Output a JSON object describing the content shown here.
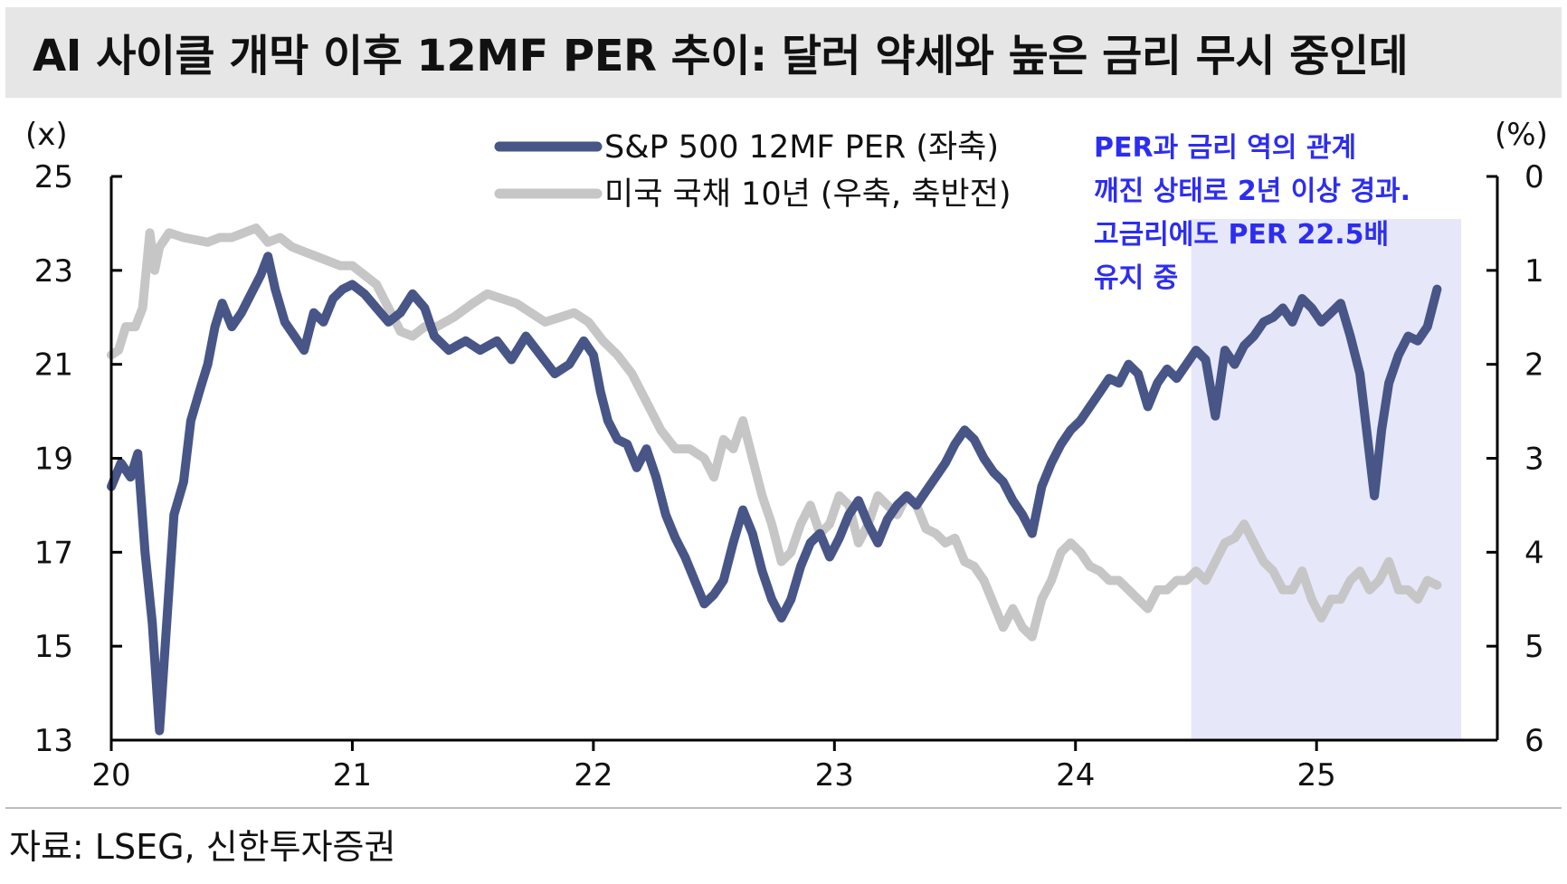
{
  "title": "AI 사이클 개막 이후 12MF PER 추이: 달러 약세와 높은 금리 무시 중인데",
  "source": "자료: LSEG, 신한투자증권",
  "annotation": [
    "PER과 금리 역의 관계",
    "깨진 상태로 2년 이상 경과.",
    "고금리에도 PER 22.5배",
    "유지 중"
  ],
  "colors": {
    "per": "#475587",
    "yield": "#c6c6c6",
    "highlight": "#e6e8f9",
    "annotation": "#2d2df0"
  },
  "chart_data": {
    "type": "line",
    "left_axis": {
      "unit": "(x)",
      "min": 13,
      "max": 25,
      "ticks": [
        25,
        23,
        21,
        19,
        17,
        15,
        13
      ]
    },
    "right_axis": {
      "unit": "(%)",
      "min": 0,
      "max": 6,
      "inverted": true,
      "ticks": [
        0,
        1,
        2,
        3,
        4,
        5,
        6
      ]
    },
    "x_axis": {
      "min": 2020,
      "max": 2025.75,
      "ticks": [
        2020,
        2021,
        2022,
        2023,
        2024,
        2025
      ],
      "labels": [
        "20",
        "21",
        "22",
        "23",
        "24",
        "25"
      ]
    },
    "highlight_x": [
      2024.48,
      2025.6
    ],
    "legend": "top-center",
    "series": [
      {
        "name": "S&P 500 12MF PER (좌축)",
        "axis": "left",
        "points": [
          [
            2020.0,
            18.4
          ],
          [
            2020.04,
            18.9
          ],
          [
            2020.08,
            18.6
          ],
          [
            2020.11,
            19.1
          ],
          [
            2020.14,
            17.0
          ],
          [
            2020.17,
            15.5
          ],
          [
            2020.2,
            13.2
          ],
          [
            2020.23,
            15.5
          ],
          [
            2020.26,
            17.8
          ],
          [
            2020.3,
            18.5
          ],
          [
            2020.33,
            19.8
          ],
          [
            2020.37,
            20.5
          ],
          [
            2020.4,
            21.0
          ],
          [
            2020.43,
            21.8
          ],
          [
            2020.46,
            22.3
          ],
          [
            2020.5,
            21.8
          ],
          [
            2020.54,
            22.1
          ],
          [
            2020.58,
            22.5
          ],
          [
            2020.62,
            22.9
          ],
          [
            2020.65,
            23.3
          ],
          [
            2020.68,
            22.6
          ],
          [
            2020.72,
            21.9
          ],
          [
            2020.76,
            21.6
          ],
          [
            2020.8,
            21.3
          ],
          [
            2020.84,
            22.1
          ],
          [
            2020.88,
            21.9
          ],
          [
            2020.92,
            22.4
          ],
          [
            2020.96,
            22.6
          ],
          [
            2021.0,
            22.7
          ],
          [
            2021.05,
            22.5
          ],
          [
            2021.1,
            22.2
          ],
          [
            2021.15,
            21.9
          ],
          [
            2021.2,
            22.1
          ],
          [
            2021.25,
            22.5
          ],
          [
            2021.3,
            22.2
          ],
          [
            2021.34,
            21.6
          ],
          [
            2021.4,
            21.3
          ],
          [
            2021.47,
            21.5
          ],
          [
            2021.53,
            21.3
          ],
          [
            2021.6,
            21.5
          ],
          [
            2021.66,
            21.1
          ],
          [
            2021.72,
            21.6
          ],
          [
            2021.78,
            21.2
          ],
          [
            2021.84,
            20.8
          ],
          [
            2021.9,
            21.0
          ],
          [
            2021.96,
            21.5
          ],
          [
            2022.0,
            21.2
          ],
          [
            2022.03,
            20.4
          ],
          [
            2022.06,
            19.8
          ],
          [
            2022.1,
            19.4
          ],
          [
            2022.14,
            19.3
          ],
          [
            2022.18,
            18.8
          ],
          [
            2022.22,
            19.2
          ],
          [
            2022.26,
            18.6
          ],
          [
            2022.3,
            17.8
          ],
          [
            2022.34,
            17.3
          ],
          [
            2022.38,
            16.9
          ],
          [
            2022.42,
            16.4
          ],
          [
            2022.46,
            15.9
          ],
          [
            2022.5,
            16.1
          ],
          [
            2022.54,
            16.4
          ],
          [
            2022.58,
            17.2
          ],
          [
            2022.62,
            17.9
          ],
          [
            2022.66,
            17.4
          ],
          [
            2022.7,
            16.6
          ],
          [
            2022.74,
            16.0
          ],
          [
            2022.78,
            15.6
          ],
          [
            2022.82,
            16.0
          ],
          [
            2022.86,
            16.7
          ],
          [
            2022.9,
            17.2
          ],
          [
            2022.94,
            17.4
          ],
          [
            2022.98,
            16.9
          ],
          [
            2023.02,
            17.3
          ],
          [
            2023.06,
            17.8
          ],
          [
            2023.1,
            18.1
          ],
          [
            2023.14,
            17.6
          ],
          [
            2023.18,
            17.2
          ],
          [
            2023.22,
            17.7
          ],
          [
            2023.26,
            18.0
          ],
          [
            2023.3,
            18.2
          ],
          [
            2023.34,
            18.0
          ],
          [
            2023.38,
            18.3
          ],
          [
            2023.42,
            18.6
          ],
          [
            2023.46,
            18.9
          ],
          [
            2023.5,
            19.3
          ],
          [
            2023.54,
            19.6
          ],
          [
            2023.58,
            19.4
          ],
          [
            2023.62,
            19.0
          ],
          [
            2023.66,
            18.7
          ],
          [
            2023.7,
            18.5
          ],
          [
            2023.74,
            18.1
          ],
          [
            2023.78,
            17.8
          ],
          [
            2023.82,
            17.4
          ],
          [
            2023.86,
            18.4
          ],
          [
            2023.9,
            18.9
          ],
          [
            2023.94,
            19.3
          ],
          [
            2023.98,
            19.6
          ],
          [
            2024.02,
            19.8
          ],
          [
            2024.06,
            20.1
          ],
          [
            2024.1,
            20.4
          ],
          [
            2024.14,
            20.7
          ],
          [
            2024.18,
            20.6
          ],
          [
            2024.22,
            21.0
          ],
          [
            2024.26,
            20.8
          ],
          [
            2024.3,
            20.1
          ],
          [
            2024.34,
            20.6
          ],
          [
            2024.38,
            20.9
          ],
          [
            2024.42,
            20.7
          ],
          [
            2024.46,
            21.0
          ],
          [
            2024.5,
            21.3
          ],
          [
            2024.54,
            21.1
          ],
          [
            2024.58,
            19.9
          ],
          [
            2024.62,
            21.3
          ],
          [
            2024.66,
            21.0
          ],
          [
            2024.7,
            21.4
          ],
          [
            2024.74,
            21.6
          ],
          [
            2024.78,
            21.9
          ],
          [
            2024.82,
            22.0
          ],
          [
            2024.86,
            22.2
          ],
          [
            2024.9,
            21.9
          ],
          [
            2024.94,
            22.4
          ],
          [
            2024.98,
            22.2
          ],
          [
            2025.02,
            21.9
          ],
          [
            2025.06,
            22.1
          ],
          [
            2025.1,
            22.3
          ],
          [
            2025.14,
            21.6
          ],
          [
            2025.18,
            20.8
          ],
          [
            2025.21,
            19.5
          ],
          [
            2025.24,
            18.2
          ],
          [
            2025.27,
            19.6
          ],
          [
            2025.3,
            20.6
          ],
          [
            2025.34,
            21.2
          ],
          [
            2025.38,
            21.6
          ],
          [
            2025.42,
            21.5
          ],
          [
            2025.46,
            21.8
          ],
          [
            2025.5,
            22.6
          ]
        ]
      },
      {
        "name": "미국 국채 10년 (우축, 축반전)",
        "axis": "right",
        "points": [
          [
            2020.0,
            1.9
          ],
          [
            2020.03,
            1.85
          ],
          [
            2020.06,
            1.6
          ],
          [
            2020.1,
            1.6
          ],
          [
            2020.13,
            1.4
          ],
          [
            2020.16,
            0.6
          ],
          [
            2020.18,
            1.0
          ],
          [
            2020.2,
            0.75
          ],
          [
            2020.24,
            0.6
          ],
          [
            2020.3,
            0.65
          ],
          [
            2020.4,
            0.7
          ],
          [
            2020.45,
            0.65
          ],
          [
            2020.5,
            0.65
          ],
          [
            2020.55,
            0.6
          ],
          [
            2020.6,
            0.55
          ],
          [
            2020.65,
            0.7
          ],
          [
            2020.7,
            0.65
          ],
          [
            2020.75,
            0.75
          ],
          [
            2020.8,
            0.8
          ],
          [
            2020.85,
            0.85
          ],
          [
            2020.9,
            0.9
          ],
          [
            2020.95,
            0.95
          ],
          [
            2021.0,
            0.95
          ],
          [
            2021.05,
            1.05
          ],
          [
            2021.1,
            1.15
          ],
          [
            2021.15,
            1.4
          ],
          [
            2021.2,
            1.65
          ],
          [
            2021.25,
            1.7
          ],
          [
            2021.3,
            1.6
          ],
          [
            2021.35,
            1.6
          ],
          [
            2021.42,
            1.5
          ],
          [
            2021.5,
            1.35
          ],
          [
            2021.56,
            1.25
          ],
          [
            2021.62,
            1.3
          ],
          [
            2021.68,
            1.35
          ],
          [
            2021.74,
            1.45
          ],
          [
            2021.8,
            1.55
          ],
          [
            2021.86,
            1.5
          ],
          [
            2021.92,
            1.45
          ],
          [
            2021.98,
            1.55
          ],
          [
            2022.04,
            1.75
          ],
          [
            2022.1,
            1.9
          ],
          [
            2022.16,
            2.1
          ],
          [
            2022.22,
            2.4
          ],
          [
            2022.28,
            2.7
          ],
          [
            2022.34,
            2.9
          ],
          [
            2022.4,
            2.9
          ],
          [
            2022.46,
            3.0
          ],
          [
            2022.5,
            3.2
          ],
          [
            2022.54,
            2.8
          ],
          [
            2022.58,
            2.9
          ],
          [
            2022.62,
            2.6
          ],
          [
            2022.66,
            3.0
          ],
          [
            2022.7,
            3.4
          ],
          [
            2022.74,
            3.7
          ],
          [
            2022.78,
            4.1
          ],
          [
            2022.82,
            4.0
          ],
          [
            2022.86,
            3.7
          ],
          [
            2022.9,
            3.5
          ],
          [
            2022.94,
            3.8
          ],
          [
            2022.98,
            3.7
          ],
          [
            2023.02,
            3.4
          ],
          [
            2023.06,
            3.5
          ],
          [
            2023.1,
            3.9
          ],
          [
            2023.14,
            3.7
          ],
          [
            2023.18,
            3.4
          ],
          [
            2023.22,
            3.5
          ],
          [
            2023.26,
            3.6
          ],
          [
            2023.3,
            3.4
          ],
          [
            2023.34,
            3.5
          ],
          [
            2023.38,
            3.75
          ],
          [
            2023.42,
            3.8
          ],
          [
            2023.46,
            3.9
          ],
          [
            2023.5,
            3.85
          ],
          [
            2023.54,
            4.1
          ],
          [
            2023.58,
            4.15
          ],
          [
            2023.62,
            4.3
          ],
          [
            2023.66,
            4.55
          ],
          [
            2023.7,
            4.8
          ],
          [
            2023.74,
            4.6
          ],
          [
            2023.78,
            4.8
          ],
          [
            2023.82,
            4.9
          ],
          [
            2023.86,
            4.5
          ],
          [
            2023.9,
            4.3
          ],
          [
            2023.94,
            4.0
          ],
          [
            2023.98,
            3.9
          ],
          [
            2024.02,
            4.0
          ],
          [
            2024.06,
            4.15
          ],
          [
            2024.1,
            4.2
          ],
          [
            2024.14,
            4.3
          ],
          [
            2024.18,
            4.3
          ],
          [
            2024.22,
            4.4
          ],
          [
            2024.26,
            4.5
          ],
          [
            2024.3,
            4.6
          ],
          [
            2024.34,
            4.4
          ],
          [
            2024.38,
            4.4
          ],
          [
            2024.42,
            4.3
          ],
          [
            2024.46,
            4.3
          ],
          [
            2024.5,
            4.2
          ],
          [
            2024.54,
            4.3
          ],
          [
            2024.58,
            4.1
          ],
          [
            2024.62,
            3.9
          ],
          [
            2024.66,
            3.85
          ],
          [
            2024.7,
            3.7
          ],
          [
            2024.74,
            3.9
          ],
          [
            2024.78,
            4.1
          ],
          [
            2024.82,
            4.2
          ],
          [
            2024.86,
            4.4
          ],
          [
            2024.9,
            4.4
          ],
          [
            2024.94,
            4.2
          ],
          [
            2024.98,
            4.5
          ],
          [
            2025.02,
            4.7
          ],
          [
            2025.06,
            4.5
          ],
          [
            2025.1,
            4.5
          ],
          [
            2025.14,
            4.3
          ],
          [
            2025.18,
            4.2
          ],
          [
            2025.22,
            4.4
          ],
          [
            2025.26,
            4.3
          ],
          [
            2025.3,
            4.1
          ],
          [
            2025.34,
            4.4
          ],
          [
            2025.38,
            4.4
          ],
          [
            2025.42,
            4.5
          ],
          [
            2025.46,
            4.3
          ],
          [
            2025.5,
            4.35
          ]
        ]
      }
    ]
  }
}
